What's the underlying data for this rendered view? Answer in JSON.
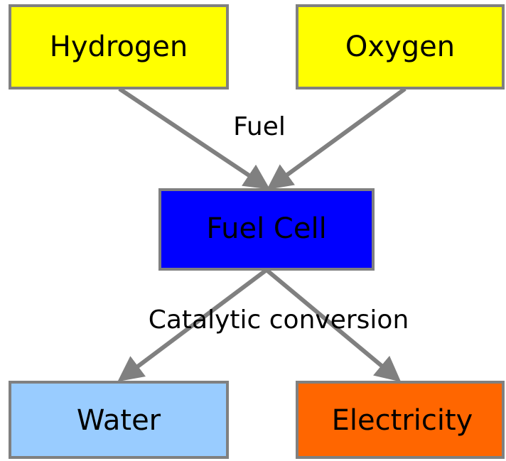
{
  "nodes": [
    {
      "label": "Hydrogen"
    },
    {
      "label": "Oxygen"
    },
    {
      "label": "Fuel Cell"
    },
    {
      "label": "Water"
    },
    {
      "label": "Electricity"
    }
  ],
  "edges": [
    {
      "label": "Fuel"
    },
    {
      "label": "Catalytic conversion"
    }
  ]
}
